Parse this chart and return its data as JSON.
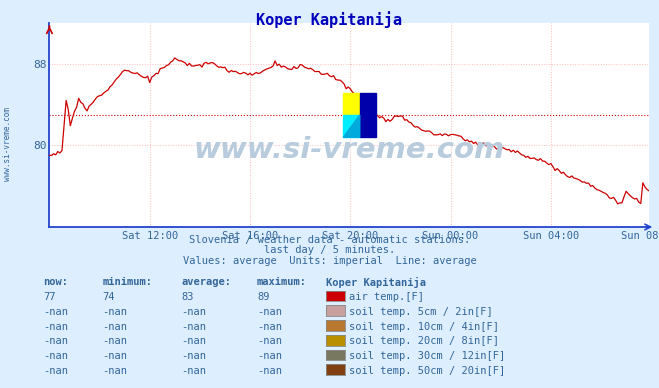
{
  "title": "Koper Kapitanija",
  "bg_color": "#ddeeff",
  "plot_bg_color": "#ffffff",
  "line_color": "#cc0000",
  "avg_line_color": "#cc0000",
  "avg_value": 83,
  "ylim": [
    72,
    92
  ],
  "yticks": [
    80,
    88
  ],
  "tick_color": "#336699",
  "grid_color": "#ffbbbb",
  "subtitle1": "Slovenia / weather data - automatic stations.",
  "subtitle2": "last day / 5 minutes.",
  "subtitle3": "Values: average  Units: imperial  Line: average",
  "watermark": "www.si-vreme.com",
  "watermark_color": "#b8ccdd",
  "now_val": "77",
  "min_val": "74",
  "avg_val": "83",
  "max_val": "89",
  "legend_title": "Koper Kapitanija",
  "legend_items": [
    {
      "label": "air temp.[F]",
      "color": "#cc0000"
    },
    {
      "label": "soil temp. 5cm / 2in[F]",
      "color": "#c8a0a0"
    },
    {
      "label": "soil temp. 10cm / 4in[F]",
      "color": "#b87830"
    },
    {
      "label": "soil temp. 20cm / 8in[F]",
      "color": "#b89000"
    },
    {
      "label": "soil temp. 30cm / 12in[F]",
      "color": "#787860"
    },
    {
      "label": "soil temp. 50cm / 20in[F]",
      "color": "#804010"
    }
  ],
  "xticklabels": [
    "Sat 12:00",
    "Sat 16:00",
    "Sat 20:00",
    "Sun 00:00",
    "Sun 04:00",
    "Sun 08:00"
  ],
  "xtick_positions": [
    48,
    96,
    144,
    192,
    240,
    287
  ],
  "n_points": 288
}
